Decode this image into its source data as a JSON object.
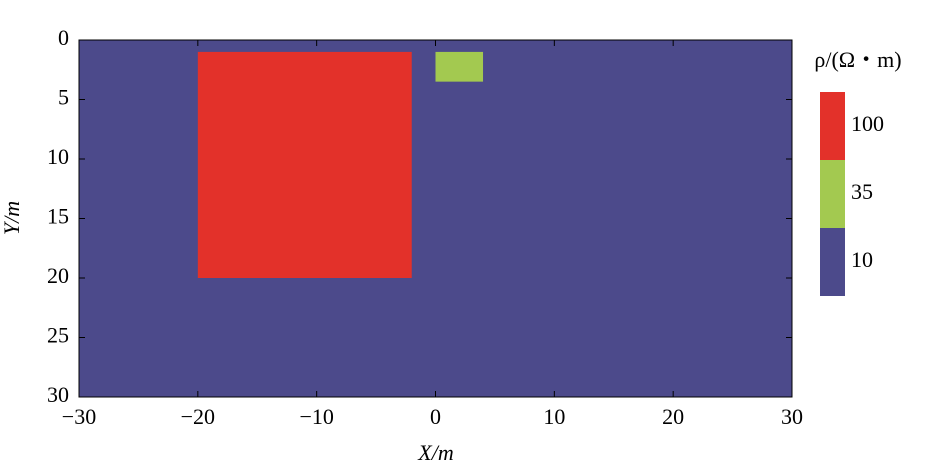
{
  "chart_data": {
    "type": "regions",
    "xlabel": "X/m",
    "ylabel": "Y/m",
    "xlim": [
      -30,
      30
    ],
    "ylim": [
      0,
      30
    ],
    "y_inverted": true,
    "xticks": [
      {
        "value": -30,
        "label": "−30"
      },
      {
        "value": -20,
        "label": "−20"
      },
      {
        "value": -10,
        "label": "−10"
      },
      0,
      10,
      20,
      30
    ],
    "yticks": [
      0,
      5,
      10,
      15,
      20,
      25,
      30
    ],
    "regions": [
      {
        "x": [
          -30,
          30
        ],
        "y": [
          0,
          30
        ],
        "value": 10
      },
      {
        "x": [
          -20,
          -2
        ],
        "y": [
          1,
          20
        ],
        "value": 100
      },
      {
        "x": [
          0,
          4
        ],
        "y": [
          1,
          3.5
        ],
        "value": 35
      }
    ],
    "colorbar": {
      "label": "ρ/(Ω・m)",
      "values": [
        100,
        35,
        10
      ],
      "colors": [
        "#e3312a",
        "#a3c950",
        "#4c4a8b"
      ]
    }
  }
}
